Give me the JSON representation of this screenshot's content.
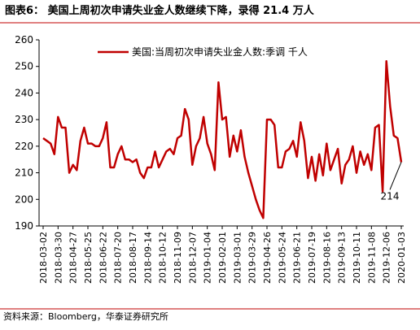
{
  "chart_data": {
    "type": "line",
    "title": "图表6：  美国上周初次申请失业金人数继续下降，录得 21.4 万人",
    "source": "资料来源：Bloomberg，华泰证券研究所",
    "annotation": "214",
    "legend": "upper left",
    "categories": [
      "2018-03-02",
      null,
      null,
      null,
      "2018-03-30",
      null,
      null,
      null,
      "2018-04-27",
      null,
      null,
      null,
      "2018-05-25",
      null,
      null,
      null,
      "2018-06-22",
      null,
      null,
      null,
      "2018-07-20",
      null,
      null,
      null,
      "2018-08-17",
      null,
      null,
      null,
      "2018-09-14",
      null,
      null,
      null,
      "2018-10-12",
      null,
      null,
      null,
      "2018-11-09",
      null,
      null,
      null,
      "2018-12-07",
      null,
      null,
      null,
      "2019-01-04",
      null,
      null,
      null,
      "2019-02-01",
      null,
      null,
      null,
      "2019-03-01",
      null,
      null,
      null,
      "2019-03-29",
      null,
      null,
      null,
      "2019-04-26",
      null,
      null,
      null,
      "2019-05-24",
      null,
      null,
      null,
      "2019-06-21",
      null,
      null,
      null,
      "2019-07-19",
      null,
      null,
      null,
      "2019-08-16",
      null,
      null,
      null,
      "2019-09-13",
      null,
      null,
      null,
      "2019-10-11",
      null,
      null,
      null,
      "2019-11-08",
      null,
      null,
      null,
      "2019-12-06",
      null,
      null,
      null,
      "2020-01-03"
    ],
    "series": [
      {
        "name": "美国:当周初次申请失业金人数:季调 千人",
        "color": "#c00000",
        "values": [
          223,
          222,
          221,
          217,
          231,
          227,
          227,
          210,
          213,
          211,
          222,
          227,
          221,
          221,
          220,
          220,
          223,
          229,
          212,
          212,
          217,
          220,
          215,
          215,
          214,
          215,
          210,
          208,
          212,
          212,
          218,
          212,
          215,
          218,
          219,
          217,
          223,
          224,
          234,
          230,
          213,
          220,
          223,
          231,
          221,
          217,
          211,
          244,
          230,
          231,
          216,
          224,
          218,
          226,
          216,
          210,
          205,
          200,
          196,
          193,
          230,
          230,
          228,
          212,
          212,
          218,
          219,
          222,
          216,
          229,
          222,
          208,
          216,
          207,
          217,
          209,
          221,
          211,
          215,
          219,
          206,
          213,
          215,
          220,
          210,
          218,
          213,
          217,
          211,
          227,
          228,
          203,
          252,
          235,
          224,
          223,
          214
        ]
      }
    ],
    "ylim": [
      190,
      260
    ],
    "yticks": [
      190,
      200,
      210,
      220,
      230,
      240,
      250,
      260
    ]
  }
}
